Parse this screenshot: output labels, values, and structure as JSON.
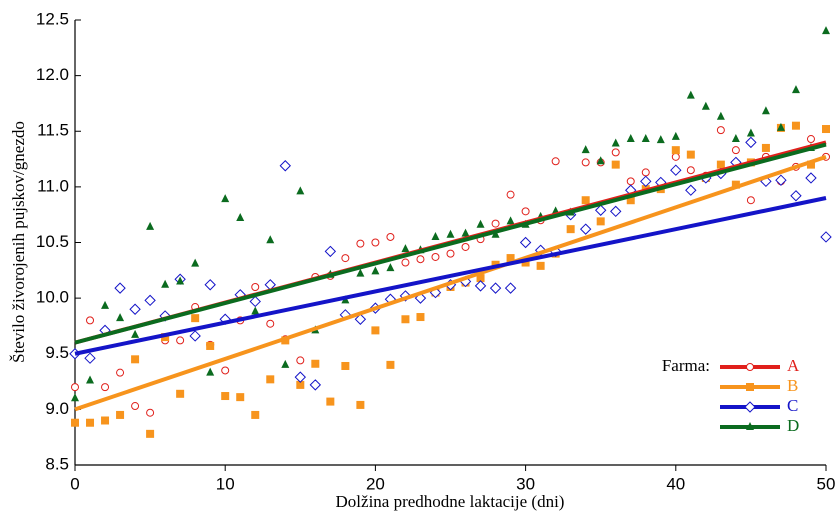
{
  "chart_data": {
    "type": "scatter",
    "xlabel": "Dolžina predhodne laktacije (dni)",
    "ylabel": "Število živorojenih pujskov/gnezdo",
    "x": [
      0,
      1,
      2,
      3,
      4,
      5,
      6,
      7,
      8,
      9,
      10,
      11,
      12,
      13,
      14,
      15,
      16,
      17,
      18,
      19,
      20,
      21,
      22,
      23,
      24,
      25,
      26,
      27,
      28,
      29,
      30,
      31,
      32,
      33,
      34,
      35,
      36,
      37,
      38,
      39,
      40,
      41,
      42,
      43,
      44,
      45,
      46,
      47,
      48,
      49,
      50
    ],
    "xlim": [
      0,
      50
    ],
    "xticks": [
      0,
      10,
      20,
      30,
      40,
      50
    ],
    "ylim": [
      8.5,
      12.5
    ],
    "yticks": [
      8.5,
      {
        "value": 9,
        "label": "9.0"
      },
      9.5,
      {
        "value": 10,
        "label": "10.0"
      },
      10.5,
      {
        "value": 11,
        "label": "11.0"
      },
      11.5,
      {
        "value": 12,
        "label": "12.0"
      },
      12.5
    ],
    "legend": "lower right",
    "legend_title": "Farma:",
    "series": [
      {
        "name": "A",
        "color": "#e0201b",
        "marker": "circle",
        "values": [
          9.2,
          9.8,
          9.2,
          9.33,
          9.03,
          8.97,
          9.62,
          9.62,
          9.92,
          9.58,
          9.35,
          9.8,
          10.1,
          9.77,
          9.63,
          9.44,
          10.19,
          10.2,
          10.36,
          10.49,
          10.5,
          10.55,
          10.32,
          10.35,
          10.37,
          10.4,
          10.46,
          10.53,
          10.67,
          10.93,
          10.78,
          10.7,
          11.23,
          10.77,
          11.22,
          11.22,
          11.31,
          11.05,
          11.13,
          11.0,
          11.27,
          11.15,
          11.1,
          11.51,
          11.33,
          10.88,
          11.27,
          11.05,
          11.18,
          11.43,
          11.27
        ],
        "fit": {
          "x": [
            0,
            50
          ],
          "y": [
            9.6,
            11.4
          ]
        }
      },
      {
        "name": "B",
        "color": "#f7941d",
        "marker": "square",
        "values": [
          8.88,
          8.88,
          8.9,
          8.95,
          9.45,
          8.78,
          9.65,
          9.14,
          9.82,
          9.57,
          9.12,
          9.11,
          8.95,
          9.27,
          9.62,
          9.22,
          9.41,
          9.07,
          9.39,
          9.04,
          9.71,
          9.4,
          9.81,
          9.83,
          10.05,
          10.1,
          10.14,
          10.18,
          10.3,
          10.36,
          10.32,
          10.29,
          10.4,
          10.62,
          10.88,
          10.69,
          11.2,
          10.88,
          10.98,
          10.98,
          11.33,
          11.29,
          11.08,
          11.2,
          11.02,
          11.22,
          11.35,
          11.53,
          11.55,
          11.2,
          11.52
        ],
        "fit": {
          "x": [
            0,
            50
          ],
          "y": [
            9.0,
            11.27
          ]
        }
      },
      {
        "name": "C",
        "color": "#1414c8",
        "marker": "diamond",
        "values": [
          9.5,
          9.46,
          9.71,
          10.09,
          9.9,
          9.98,
          9.84,
          10.17,
          9.66,
          10.12,
          9.81,
          10.03,
          9.97,
          10.12,
          11.19,
          9.29,
          9.22,
          10.42,
          9.85,
          9.81,
          9.91,
          9.99,
          10.02,
          10.0,
          10.05,
          10.12,
          10.15,
          10.11,
          10.09,
          10.09,
          10.5,
          10.43,
          10.42,
          10.75,
          10.62,
          10.79,
          10.78,
          10.97,
          11.05,
          11.04,
          11.15,
          10.97,
          11.08,
          11.12,
          11.22,
          11.4,
          11.05,
          11.06,
          10.92,
          11.08,
          10.55
        ],
        "fit": {
          "x": [
            0,
            50
          ],
          "y": [
            9.5,
            10.9
          ]
        }
      },
      {
        "name": "D",
        "color": "#0b6b1f",
        "marker": "triangle",
        "values": [
          9.1,
          9.26,
          9.93,
          9.82,
          9.67,
          10.64,
          10.12,
          10.15,
          10.31,
          9.33,
          10.89,
          10.72,
          9.88,
          10.52,
          9.4,
          10.96,
          9.71,
          10.21,
          9.98,
          10.22,
          10.24,
          10.27,
          10.44,
          10.43,
          10.55,
          10.57,
          10.58,
          10.66,
          10.57,
          10.69,
          10.66,
          10.73,
          10.78,
          10.77,
          11.33,
          11.23,
          11.39,
          11.43,
          11.43,
          11.42,
          11.45,
          11.82,
          11.72,
          11.63,
          11.43,
          11.48,
          11.68,
          11.53,
          11.87,
          11.35,
          12.4
        ],
        "fit": {
          "x": [
            0,
            50
          ],
          "y": [
            9.6,
            11.38
          ]
        }
      }
    ]
  }
}
